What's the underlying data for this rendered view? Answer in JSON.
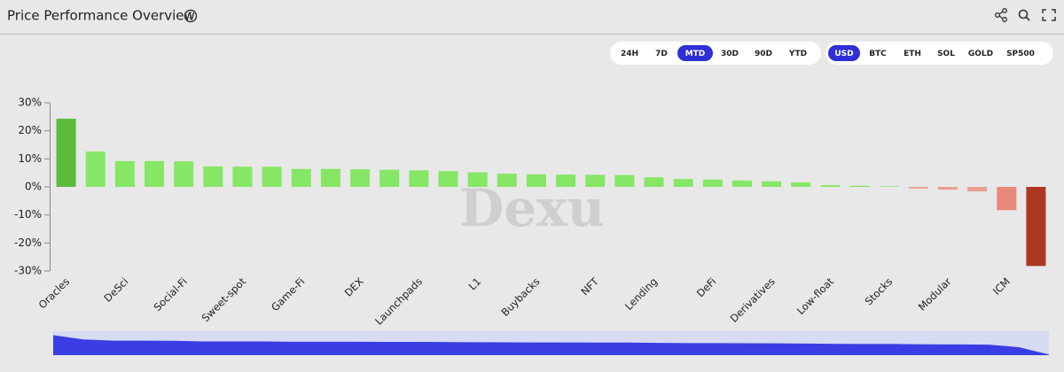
{
  "header": {
    "title": "Price Performance Overview"
  },
  "periods": {
    "options": [
      "24H",
      "7D",
      "MTD",
      "30D",
      "90D",
      "YTD"
    ],
    "active": 2
  },
  "bases": {
    "options": [
      "USD",
      "BTC",
      "ETH",
      "SOL",
      "GOLD",
      "SP500"
    ],
    "active": 0
  },
  "watermark": "Dexu",
  "chart_data": {
    "type": "bar",
    "categories": [
      "Oracles",
      null,
      "DeSci",
      null,
      "Social-Fi",
      null,
      "Sweet-spot",
      null,
      "Game-Fi",
      null,
      "DEX",
      null,
      "Launchpads",
      null,
      "L1",
      null,
      "Buybacks",
      null,
      "NFT",
      null,
      "Lending",
      null,
      "DeFi",
      null,
      "Derivatives",
      null,
      "Low-float",
      null,
      "Stocks",
      null,
      "Modular",
      null,
      "ICM",
      null
    ],
    "values": [
      24.3,
      12.6,
      9.2,
      9.2,
      9.1,
      7.3,
      7.2,
      7.2,
      6.4,
      6.4,
      6.3,
      6.1,
      5.9,
      5.6,
      5.2,
      4.7,
      4.5,
      4.4,
      4.3,
      4.2,
      3.4,
      2.8,
      2.6,
      2.3,
      2.0,
      1.6,
      0.6,
      0.4,
      0.2,
      -0.6,
      -1.0,
      -1.6,
      -8.3,
      -28.2
    ],
    "colors": [
      "#5bbb3b",
      "#86e665",
      "#86e665",
      "#86e665",
      "#86e665",
      "#86e665",
      "#86e665",
      "#86e665",
      "#86e665",
      "#86e665",
      "#86e665",
      "#86e665",
      "#86e665",
      "#86e665",
      "#86e665",
      "#86e665",
      "#86e665",
      "#86e665",
      "#86e665",
      "#86e665",
      "#86e665",
      "#86e665",
      "#86e665",
      "#86e665",
      "#86e665",
      "#86e665",
      "#86e665",
      "#86e665",
      "#86e665",
      "#e8a090",
      "#e8a090",
      "#e8a090",
      "#e8887a",
      "#ad3621"
    ],
    "ylim": [
      -30,
      30
    ],
    "yticks": [
      {
        "value": -30,
        "label": "-30%"
      },
      {
        "value": -20,
        "label": "-20%"
      },
      {
        "value": -10,
        "label": "-10%"
      },
      {
        "value": 0,
        "label": "0%"
      },
      {
        "value": 10,
        "label": "10%"
      },
      {
        "value": 20,
        "label": "20%"
      },
      {
        "value": 30,
        "label": "30%"
      }
    ],
    "grid": false,
    "navigator_color": "#3a3de3"
  }
}
